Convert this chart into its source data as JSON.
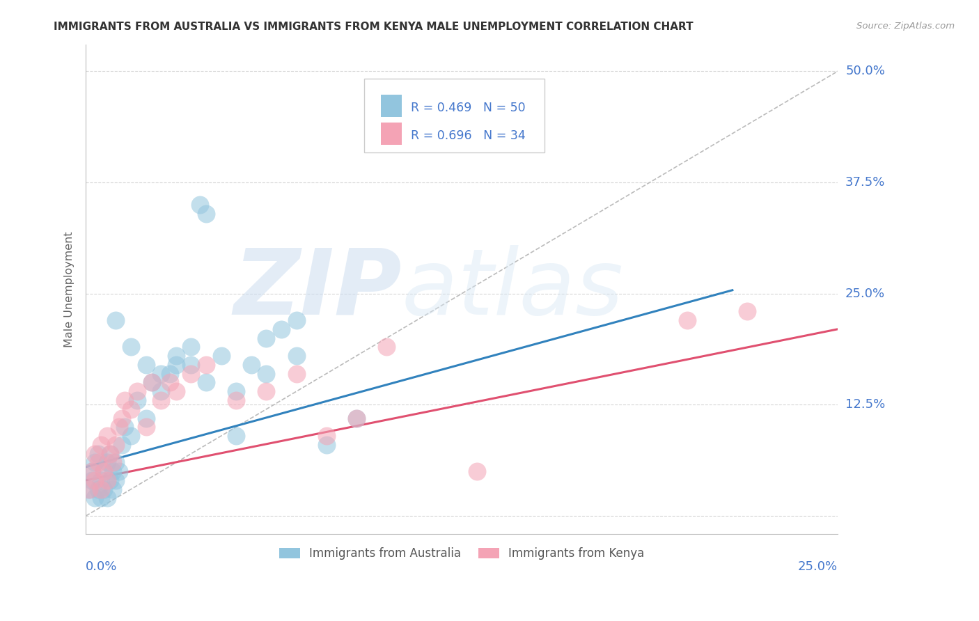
{
  "title": "IMMIGRANTS FROM AUSTRALIA VS IMMIGRANTS FROM KENYA MALE UNEMPLOYMENT CORRELATION CHART",
  "source": "Source: ZipAtlas.com",
  "ylabel": "Male Unemployment",
  "yticks": [
    0.0,
    0.125,
    0.25,
    0.375,
    0.5
  ],
  "ytick_labels": [
    "",
    "12.5%",
    "25.0%",
    "37.5%",
    "50.0%"
  ],
  "xlim": [
    0.0,
    0.25
  ],
  "ylim": [
    -0.02,
    0.53
  ],
  "legend_r1": "R = 0.469   N = 50",
  "legend_r2": "R = 0.696   N = 34",
  "blue_color": "#92c5de",
  "pink_color": "#f4a3b5",
  "blue_line_color": "#3182bd",
  "pink_line_color": "#e05070",
  "dashed_line_color": "#bbbbbb",
  "background_color": "#ffffff",
  "grid_color": "#cccccc",
  "axis_label_color": "#4477cc",
  "title_color": "#333333",
  "source_color": "#999999",
  "watermark1": "ZIP",
  "watermark2": "atlas",
  "aus_x": [
    0.001,
    0.002,
    0.002,
    0.003,
    0.003,
    0.004,
    0.004,
    0.005,
    0.005,
    0.006,
    0.006,
    0.007,
    0.007,
    0.008,
    0.008,
    0.009,
    0.009,
    0.01,
    0.01,
    0.011,
    0.012,
    0.013,
    0.015,
    0.017,
    0.02,
    0.022,
    0.025,
    0.028,
    0.03,
    0.035,
    0.038,
    0.04,
    0.045,
    0.05,
    0.055,
    0.06,
    0.065,
    0.07,
    0.08,
    0.09,
    0.01,
    0.015,
    0.02,
    0.025,
    0.03,
    0.035,
    0.04,
    0.05,
    0.06,
    0.07
  ],
  "aus_y": [
    0.03,
    0.04,
    0.05,
    0.02,
    0.06,
    0.03,
    0.07,
    0.04,
    0.02,
    0.05,
    0.03,
    0.06,
    0.02,
    0.04,
    0.07,
    0.05,
    0.03,
    0.06,
    0.04,
    0.05,
    0.08,
    0.1,
    0.09,
    0.13,
    0.11,
    0.15,
    0.14,
    0.16,
    0.17,
    0.19,
    0.35,
    0.34,
    0.18,
    0.09,
    0.17,
    0.2,
    0.21,
    0.22,
    0.08,
    0.11,
    0.22,
    0.19,
    0.17,
    0.16,
    0.18,
    0.17,
    0.15,
    0.14,
    0.16,
    0.18
  ],
  "ken_x": [
    0.001,
    0.002,
    0.003,
    0.003,
    0.004,
    0.005,
    0.005,
    0.006,
    0.007,
    0.007,
    0.008,
    0.009,
    0.01,
    0.011,
    0.012,
    0.013,
    0.015,
    0.017,
    0.02,
    0.022,
    0.025,
    0.028,
    0.03,
    0.035,
    0.04,
    0.05,
    0.06,
    0.07,
    0.08,
    0.09,
    0.1,
    0.13,
    0.2,
    0.22
  ],
  "ken_y": [
    0.03,
    0.05,
    0.04,
    0.07,
    0.06,
    0.08,
    0.03,
    0.05,
    0.09,
    0.04,
    0.07,
    0.06,
    0.08,
    0.1,
    0.11,
    0.13,
    0.12,
    0.14,
    0.1,
    0.15,
    0.13,
    0.15,
    0.14,
    0.16,
    0.17,
    0.13,
    0.14,
    0.16,
    0.09,
    0.11,
    0.19,
    0.05,
    0.22,
    0.23
  ]
}
